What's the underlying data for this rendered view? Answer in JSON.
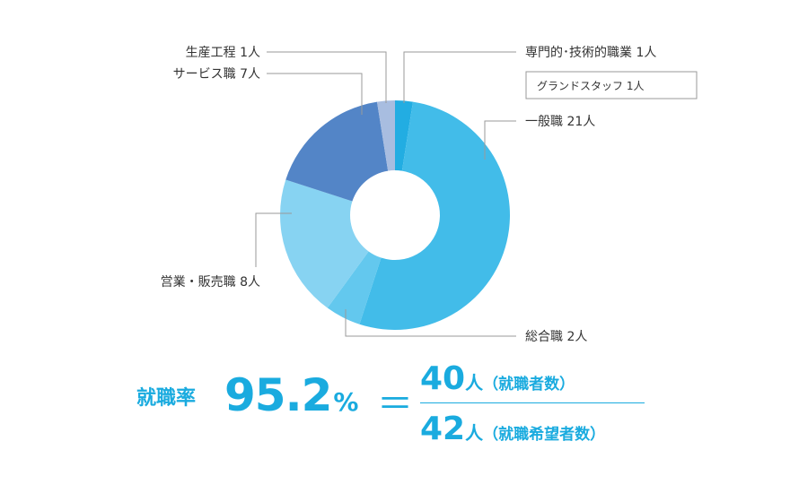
{
  "chart_data": {
    "type": "pie",
    "categories": [
      "専門的・技術的職業",
      "一般職",
      "総合職",
      "営業・販売職",
      "サービス職",
      "生産工程"
    ],
    "values": [
      1,
      21,
      2,
      8,
      7,
      1
    ],
    "labels": [
      "専門的･技術的職業 1人",
      "一般職 21人",
      "総合職 2人",
      "営業・販売職 8人",
      "サービス職 7人",
      "生産工程 1人"
    ],
    "sub_note": "グランドスタッフ 1人",
    "colors": [
      "#22ade2",
      "#42bce9",
      "#63c8ee",
      "#87d3f2",
      "#5385c7",
      "#a8bde0"
    ]
  },
  "rate": {
    "label": "就職率",
    "value": "95.2",
    "unit": "%",
    "equals": "＝",
    "numerator": "40",
    "numerator_unit": "人",
    "numerator_note": "（就職者数）",
    "denominator": "42",
    "denominator_unit": "人",
    "denominator_note": "（就職希望者数）"
  }
}
